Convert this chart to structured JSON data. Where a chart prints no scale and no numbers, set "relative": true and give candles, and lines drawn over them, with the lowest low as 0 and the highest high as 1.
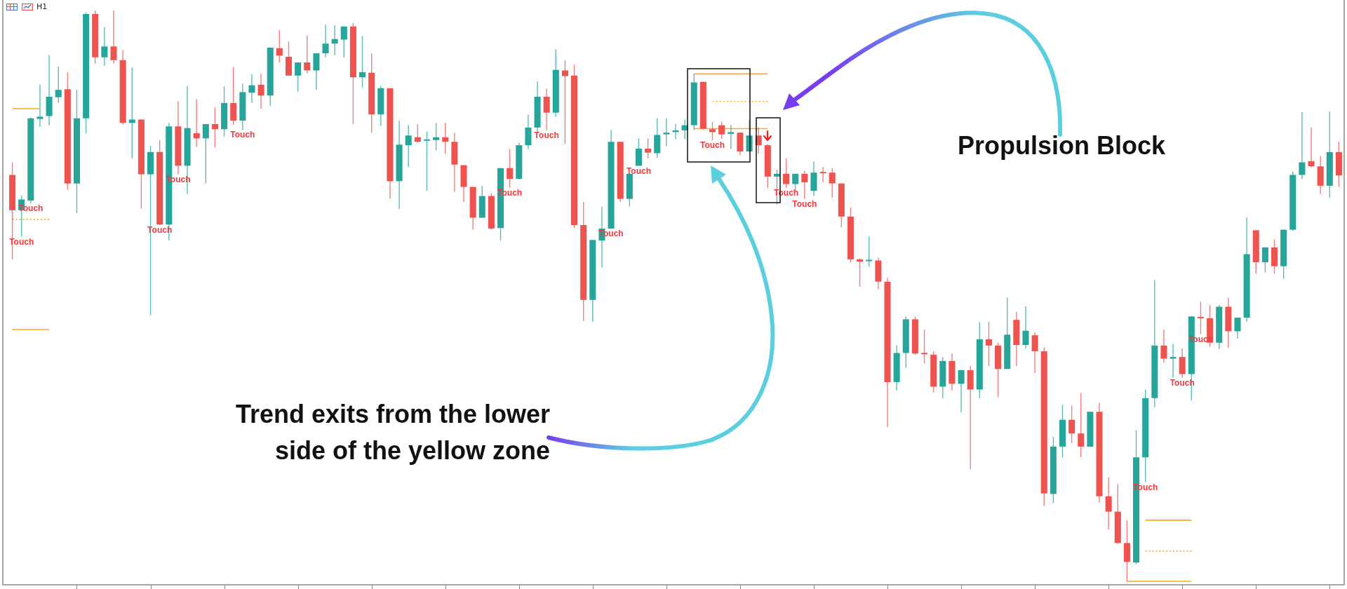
{
  "chart_data": {
    "type": "candlestick",
    "relative": true,
    "title": "H1",
    "tick_labels": false,
    "marker": "none",
    "categories": [
      null,
      null,
      null,
      null,
      null,
      null,
      null,
      null,
      null,
      null,
      null,
      null,
      null,
      null,
      null,
      null,
      null,
      null,
      null,
      null,
      null,
      null,
      null,
      null,
      null,
      null,
      null,
      null,
      null,
      null,
      null,
      null,
      null,
      null,
      null,
      null,
      null,
      null,
      null,
      null,
      null,
      null,
      null,
      null,
      null,
      null,
      null,
      null,
      null,
      null,
      null,
      null,
      null,
      null,
      null,
      null,
      null,
      null,
      null,
      null,
      null,
      null,
      null,
      null,
      null,
      null,
      null,
      null,
      null,
      null,
      null,
      null,
      null,
      null,
      null,
      null,
      null,
      null,
      null,
      null,
      null,
      null,
      null,
      null,
      null,
      null,
      null,
      null,
      null,
      null,
      null,
      null,
      null,
      null,
      null,
      null,
      null,
      null,
      null,
      null,
      null,
      null,
      null,
      null,
      null,
      null,
      null,
      null,
      null,
      null,
      null,
      null,
      null,
      null,
      null,
      null,
      null,
      null,
      null,
      null,
      null,
      null,
      null,
      null,
      null,
      null,
      null,
      null,
      null,
      null,
      null,
      null,
      null,
      null,
      null,
      null,
      null,
      null,
      null,
      null,
      null,
      null,
      null,
      null,
      null
    ],
    "ohlc": [
      [
        0.712,
        0.734,
        0.564,
        0.65
      ],
      [
        0.65,
        0.676,
        0.604,
        0.669
      ],
      [
        0.667,
        0.813,
        0.662,
        0.811
      ],
      [
        0.81,
        0.87,
        0.796,
        0.814
      ],
      [
        0.815,
        0.922,
        0.799,
        0.849
      ],
      [
        0.848,
        0.902,
        0.838,
        0.861
      ],
      [
        0.862,
        0.892,
        0.686,
        0.697
      ],
      [
        0.697,
        0.861,
        0.645,
        0.811
      ],
      [
        0.811,
        0.997,
        0.785,
        0.994
      ],
      [
        0.994,
        1,
        0.907,
        0.918
      ],
      [
        0.918,
        0.971,
        0.903,
        0.937
      ],
      [
        0.937,
        1,
        0.907,
        0.913
      ],
      [
        0.913,
        0.931,
        0.8,
        0.803
      ],
      [
        0.803,
        0.9,
        0.741,
        0.809
      ],
      [
        0.809,
        0.809,
        0.653,
        0.713
      ],
      [
        0.713,
        0.763,
        0.466,
        0.752
      ],
      [
        0.752,
        0.773,
        0.624,
        0.625
      ],
      [
        0.625,
        0.803,
        0.597,
        0.797
      ],
      [
        0.797,
        0.841,
        0.713,
        0.728
      ],
      [
        0.728,
        0.868,
        0.678,
        0.794
      ],
      [
        0.785,
        0.845,
        0.761,
        0.776
      ],
      [
        0.776,
        0.801,
        0.697,
        0.801
      ],
      [
        0.801,
        0.83,
        0.76,
        0.792
      ],
      [
        0.792,
        0.867,
        0.779,
        0.838
      ],
      [
        0.838,
        0.901,
        0.8,
        0.807
      ],
      [
        0.807,
        0.872,
        0.791,
        0.857
      ],
      [
        0.856,
        0.888,
        0.838,
        0.869
      ],
      [
        0.87,
        0.889,
        0.828,
        0.851
      ],
      [
        0.851,
        0.935,
        0.833,
        0.935
      ],
      [
        0.934,
        0.966,
        0.909,
        0.921
      ],
      [
        0.919,
        0.946,
        0.886,
        0.886
      ],
      [
        0.886,
        0.909,
        0.858,
        0.909
      ],
      [
        0.909,
        0.956,
        0.89,
        0.895
      ],
      [
        0.895,
        0.925,
        0.861,
        0.925
      ],
      [
        0.925,
        0.975,
        0.918,
        0.942
      ],
      [
        0.942,
        0.974,
        0.922,
        0.95
      ],
      [
        0.949,
        0.972,
        0.918,
        0.972
      ],
      [
        0.972,
        0.978,
        0.801,
        0.883
      ],
      [
        0.883,
        0.955,
        0.865,
        0.892
      ],
      [
        0.891,
        0.925,
        0.786,
        0.818
      ],
      [
        0.818,
        0.868,
        0.798,
        0.864
      ],
      [
        0.864,
        0.864,
        0.67,
        0.701
      ],
      [
        0.701,
        0.807,
        0.652,
        0.765
      ],
      [
        0.764,
        0.799,
        0.726,
        0.781
      ],
      [
        0.778,
        0.801,
        0.768,
        0.77
      ],
      [
        0.771,
        0.788,
        0.684,
        0.773
      ],
      [
        0.773,
        0.803,
        0.755,
        0.778
      ],
      [
        0.778,
        0.803,
        0.749,
        0.77
      ],
      [
        0.77,
        0.786,
        0.682,
        0.73
      ],
      [
        0.729,
        0.729,
        0.665,
        0.691
      ],
      [
        0.691,
        0.691,
        0.616,
        0.637
      ],
      [
        0.637,
        0.693,
        0.637,
        0.675
      ],
      [
        0.675,
        0.68,
        0.616,
        0.618
      ],
      [
        0.619,
        0.724,
        0.597,
        0.724
      ],
      [
        0.724,
        0.757,
        0.689,
        0.705
      ],
      [
        0.705,
        0.768,
        0.704,
        0.764
      ],
      [
        0.764,
        0.818,
        0.757,
        0.795
      ],
      [
        0.795,
        0.876,
        0.785,
        0.849
      ],
      [
        0.849,
        0.863,
        0.79,
        0.821
      ],
      [
        0.821,
        0.932,
        0.814,
        0.896
      ],
      [
        0.895,
        0.913,
        0.766,
        0.885
      ],
      [
        0.886,
        0.905,
        0.619,
        0.624
      ],
      [
        0.624,
        0.665,
        0.456,
        0.493
      ],
      [
        0.493,
        0.598,
        0.455,
        0.598
      ],
      [
        0.597,
        0.656,
        0.55,
        0.618
      ],
      [
        0.618,
        0.791,
        0.618,
        0.77
      ],
      [
        0.77,
        0.77,
        0.665,
        0.67
      ],
      [
        0.67,
        0.714,
        0.657,
        0.714
      ],
      [
        0.728,
        0.776,
        0.728,
        0.758
      ],
      [
        0.758,
        0.776,
        0.741,
        0.751
      ],
      [
        0.75,
        0.811,
        0.742,
        0.782
      ],
      [
        0.783,
        0.811,
        0.762,
        0.786
      ],
      [
        0.787,
        0.801,
        0.775,
        0.79
      ],
      [
        0.79,
        0.809,
        0.775,
        0.799
      ],
      [
        0.799,
        0.889,
        0.791,
        0.874
      ],
      [
        0.875,
        0.875,
        0.791,
        0.793
      ],
      [
        0.792,
        0.805,
        0.773,
        0.787
      ],
      [
        0.799,
        0.805,
        0.775,
        0.783
      ],
      [
        0.784,
        0.799,
        0.757,
        0.787
      ],
      [
        0.786,
        0.786,
        0.747,
        0.753
      ],
      [
        0.753,
        0.808,
        0.753,
        0.781
      ],
      [
        0.781,
        0.795,
        0.749,
        0.764
      ],
      [
        0.764,
        0.766,
        0.689,
        0.709
      ],
      [
        0.709,
        0.721,
        0.66,
        0.714
      ],
      [
        0.714,
        0.741,
        0.689,
        0.696
      ],
      [
        0.696,
        0.714,
        0.684,
        0.714
      ],
      [
        0.714,
        0.719,
        0.67,
        0.699
      ],
      [
        0.684,
        0.736,
        0.675,
        0.716
      ],
      [
        0.716,
        0.726,
        0.699,
        0.715
      ],
      [
        0.716,
        0.724,
        0.672,
        0.697
      ],
      [
        0.697,
        0.697,
        0.62,
        0.639
      ],
      [
        0.639,
        0.655,
        0.558,
        0.564
      ],
      [
        0.564,
        0.566,
        0.516,
        0.56
      ],
      [
        0.56,
        0.604,
        0.551,
        0.562
      ],
      [
        0.562,
        0.567,
        0.512,
        0.525
      ],
      [
        0.525,
        0.532,
        0.27,
        0.349
      ],
      [
        0.349,
        0.413,
        0.334,
        0.4
      ],
      [
        0.4,
        0.464,
        0.374,
        0.459
      ],
      [
        0.459,
        0.464,
        0.397,
        0.399
      ],
      [
        0.399,
        0.441,
        0.382,
        0.397
      ],
      [
        0.397,
        0.403,
        0.331,
        0.341
      ],
      [
        0.341,
        0.393,
        0.321,
        0.386
      ],
      [
        0.386,
        0.399,
        0.334,
        0.346
      ],
      [
        0.346,
        0.37,
        0.296,
        0.37
      ],
      [
        0.37,
        0.377,
        0.196,
        0.336
      ],
      [
        0.336,
        0.454,
        0.321,
        0.424
      ],
      [
        0.424,
        0.455,
        0.377,
        0.413
      ],
      [
        0.413,
        0.418,
        0.323,
        0.372
      ],
      [
        0.372,
        0.497,
        0.372,
        0.432
      ],
      [
        0.458,
        0.472,
        0.377,
        0.414
      ],
      [
        0.414,
        0.482,
        0.408,
        0.439
      ],
      [
        0.431,
        0.436,
        0.365,
        0.403
      ],
      [
        0.403,
        0.41,
        0.132,
        0.154
      ],
      [
        0.153,
        0.253,
        0.137,
        0.236
      ],
      [
        0.236,
        0.309,
        0.217,
        0.283
      ],
      [
        0.283,
        0.308,
        0.242,
        0.259
      ],
      [
        0.259,
        0.33,
        0.217,
        0.236
      ],
      [
        0.236,
        0.297,
        0.236,
        0.297
      ],
      [
        0.297,
        0.313,
        0.138,
        0.149
      ],
      [
        0.149,
        0.182,
        0.091,
        0.122
      ],
      [
        0.122,
        0.17,
        0.066,
        0.067
      ],
      [
        0.067,
        0.107,
        0,
        0.034
      ],
      [
        0.033,
        0.265,
        0.03,
        0.217
      ],
      [
        0.217,
        0.336,
        0.174,
        0.321
      ],
      [
        0.321,
        0.528,
        0.305,
        0.413
      ],
      [
        0.413,
        0.441,
        0.383,
        0.39
      ],
      [
        0.39,
        0.416,
        0.357,
        0.393
      ],
      [
        0.393,
        0.408,
        0.357,
        0.363
      ],
      [
        0.363,
        0.464,
        0.317,
        0.464
      ],
      [
        0.462,
        0.49,
        0.433,
        0.461
      ],
      [
        0.461,
        0.484,
        0.411,
        0.418
      ],
      [
        0.418,
        0.484,
        0.407,
        0.481
      ],
      [
        0.481,
        0.497,
        0.409,
        0.438
      ],
      [
        0.438,
        0.462,
        0.425,
        0.462
      ],
      [
        0.462,
        0.638,
        0.455,
        0.573
      ],
      [
        0.615,
        0.615,
        0.539,
        0.559
      ],
      [
        0.559,
        0.585,
        0.541,
        0.585
      ],
      [
        0.585,
        0.599,
        0.539,
        0.552
      ],
      [
        0.552,
        0.616,
        0.53,
        0.616
      ],
      [
        0.616,
        0.718,
        0.614,
        0.712
      ],
      [
        0.712,
        0.822,
        0.705,
        0.734
      ],
      [
        0.736,
        0.795,
        0.725,
        0.727
      ],
      [
        0.727,
        0.745,
        0.678,
        0.693
      ],
      [
        0.693,
        0.823,
        0.672,
        0.752
      ],
      [
        0.752,
        0.77,
        0.691,
        0.711
      ]
    ],
    "colors": [
      "#ef5350",
      "#26a69a",
      "#26a69a",
      "#26a69a",
      "#26a69a",
      "#26a69a",
      "#ef5350",
      "#26a69a",
      "#26a69a",
      "#ef5350",
      "#26a69a",
      "#ef5350",
      "#ef5350",
      "#26a69a",
      "#ef5350",
      "#26a69a",
      "#ef5350",
      "#26a69a",
      "#ef5350",
      "#26a69a",
      "#ef5350",
      "#26a69a",
      "#ef5350",
      "#26a69a",
      "#ef5350",
      "#26a69a",
      "#26a69a",
      "#ef5350",
      "#26a69a",
      "#ef5350",
      "#ef5350",
      "#26a69a",
      "#ef5350",
      "#26a69a",
      "#26a69a",
      "#26a69a",
      "#26a69a",
      "#ef5350",
      "#26a69a",
      "#ef5350",
      "#26a69a",
      "#ef5350",
      "#26a69a",
      "#26a69a",
      "#ef5350",
      "#26a69a",
      "#26a69a",
      "#ef5350",
      "#ef5350",
      "#ef5350",
      "#ef5350",
      "#26a69a",
      "#ef5350",
      "#26a69a",
      "#ef5350",
      "#26a69a",
      "#26a69a",
      "#26a69a",
      "#ef5350",
      "#26a69a",
      "#ef5350",
      "#ef5350",
      "#ef5350",
      "#26a69a",
      "#26a69a",
      "#26a69a",
      "#ef5350",
      "#26a69a",
      "#26a69a",
      "#ef5350",
      "#26a69a",
      "#26a69a",
      "#26a69a",
      "#26a69a",
      "#26a69a",
      "#ef5350",
      "#ef5350",
      "#ef5350",
      "#26a69a",
      "#ef5350",
      "#26a69a",
      "#ef5350",
      "#ef5350",
      "#26a69a",
      "#ef5350",
      "#26a69a",
      "#ef5350",
      "#26a69a",
      "#ef5350",
      "#ef5350",
      "#ef5350",
      "#ef5350",
      "#ef5350",
      "#26a69a",
      "#ef5350",
      "#ef5350",
      "#26a69a",
      "#26a69a",
      "#ef5350",
      "#ef5350",
      "#ef5350",
      "#26a69a",
      "#ef5350",
      "#26a69a",
      "#ef5350",
      "#26a69a",
      "#ef5350",
      "#ef5350",
      "#26a69a",
      "#ef5350",
      "#26a69a",
      "#ef5350",
      "#ef5350",
      "#26a69a",
      "#26a69a",
      "#ef5350",
      "#ef5350",
      "#26a69a",
      "#ef5350",
      "#ef5350",
      "#ef5350",
      "#ef5350",
      "#26a69a",
      "#26a69a",
      "#26a69a",
      "#ef5350",
      "#26a69a",
      "#ef5350",
      "#26a69a",
      "#ef5350",
      "#ef5350",
      "#26a69a",
      "#ef5350",
      "#26a69a",
      "#26a69a",
      "#ef5350",
      "#26a69a",
      "#ef5350",
      "#26a69a",
      "#26a69a",
      "#26a69a",
      "#ef5350",
      "#ef5350",
      "#26a69a",
      "#ef5350"
    ],
    "value_labels": [
      null,
      "Touch",
      "Touch",
      null,
      null,
      null,
      null,
      null,
      null,
      null,
      null,
      null,
      null,
      null,
      null,
      null,
      "Touch",
      null,
      "Touch",
      null,
      null,
      null,
      null,
      null,
      null,
      "Touch",
      null,
      null,
      null,
      null,
      null,
      null,
      null,
      null,
      null,
      null,
      null,
      null,
      null,
      null,
      null,
      null,
      null,
      null,
      null,
      null,
      null,
      null,
      null,
      null,
      null,
      null,
      null,
      null,
      "Touch",
      null,
      null,
      null,
      "Touch",
      null,
      null,
      null,
      null,
      null,
      null,
      "Touch",
      null,
      null,
      "Touch",
      null,
      null,
      null,
      null,
      null,
      null,
      null,
      "Touch",
      null,
      null,
      null,
      null,
      null,
      null,
      null,
      "Touch",
      null,
      "Touch",
      null,
      null,
      null,
      null,
      null,
      null,
      null,
      null,
      null,
      null,
      null,
      null,
      null,
      null,
      null,
      null,
      null,
      null,
      null,
      null,
      null,
      null,
      null,
      null,
      null,
      null,
      null,
      null,
      null,
      null,
      null,
      null,
      null,
      null,
      null,
      null,
      "Touch",
      null,
      null,
      null,
      "Touch",
      null,
      "Touch",
      null,
      null,
      null,
      null,
      null,
      null,
      null,
      null,
      null,
      null,
      null,
      null,
      null,
      null,
      null
    ],
    "series": [
      {
        "type": "line",
        "color": "#ffa91f",
        "line_style": "solid",
        "values": [
          0.828,
          0.828,
          0.828,
          0.828,
          null,
          null,
          null,
          null,
          null,
          null,
          null,
          null,
          null,
          null,
          null,
          null,
          null,
          null,
          null,
          null,
          null,
          null,
          null,
          null,
          null,
          null,
          null,
          null,
          null,
          null,
          null,
          null,
          null,
          null,
          null,
          null,
          null,
          null,
          null,
          null,
          null,
          null,
          null,
          null,
          null,
          null,
          null,
          null,
          null,
          null,
          null,
          null,
          null,
          null,
          null,
          null,
          null,
          null,
          null,
          null,
          null,
          null,
          null,
          null,
          null,
          null,
          null,
          null,
          null,
          null,
          null,
          null,
          null,
          null,
          null,
          null,
          null,
          null,
          null,
          null,
          null,
          null,
          null,
          null,
          null,
          null,
          null,
          null,
          null,
          null,
          null,
          null,
          null,
          null,
          null,
          null,
          null,
          null,
          null,
          null,
          null,
          null,
          null,
          null,
          null,
          null,
          null,
          null,
          null,
          null,
          null,
          null,
          null,
          null,
          null,
          null,
          null,
          null,
          null,
          null,
          null,
          null,
          null,
          null,
          null,
          null,
          null,
          null,
          null,
          null,
          null,
          null,
          null,
          null,
          null,
          null,
          null,
          null,
          null,
          null,
          null,
          null,
          null,
          null,
          null
        ]
      },
      {
        "type": "line",
        "color": "#ffa91f",
        "line_style": "dotted",
        "values": [
          0.634,
          0.634,
          0.634,
          0.634,
          0.634,
          null,
          null,
          null,
          null,
          null,
          null,
          null,
          null,
          null,
          null,
          null,
          null,
          null,
          null,
          null,
          null,
          null,
          null,
          null,
          null,
          null,
          null,
          null,
          null,
          null,
          null,
          null,
          null,
          null,
          null,
          null,
          null,
          null,
          null,
          null,
          null,
          null,
          null,
          null,
          null,
          null,
          null,
          null,
          null,
          null,
          null,
          null,
          null,
          null,
          null,
          null,
          null,
          null,
          null,
          null,
          null,
          null,
          null,
          null,
          null,
          null,
          null,
          null,
          null,
          null,
          null,
          null,
          null,
          null,
          null,
          null,
          null,
          null,
          null,
          null,
          null,
          null,
          null,
          null,
          null,
          null,
          null,
          null,
          null,
          null,
          null,
          null,
          null,
          null,
          null,
          null,
          null,
          null,
          null,
          null,
          null,
          null,
          null,
          null,
          null,
          null,
          null,
          null,
          null,
          null,
          null,
          null,
          null,
          null,
          null,
          null,
          null,
          null,
          null,
          null,
          null,
          null,
          null,
          null,
          null,
          null,
          null,
          null,
          null,
          null,
          null,
          null,
          null,
          null,
          null,
          null,
          null,
          null,
          null,
          null,
          null,
          null,
          null,
          null,
          null
        ]
      },
      {
        "type": "line",
        "color": "#ffa91f",
        "line_style": "solid",
        "values": [
          0.441,
          0.441,
          0.441,
          0.441,
          0.441,
          null,
          null,
          null,
          null,
          null,
          null,
          null,
          null,
          null,
          null,
          null,
          null,
          null,
          null,
          null,
          null,
          null,
          null,
          null,
          null,
          null,
          null,
          null,
          null,
          null,
          null,
          null,
          null,
          null,
          null,
          null,
          null,
          null,
          null,
          null,
          null,
          null,
          null,
          null,
          null,
          null,
          null,
          null,
          null,
          null,
          null,
          null,
          null,
          null,
          null,
          null,
          null,
          null,
          null,
          null,
          null,
          null,
          null,
          null,
          null,
          null,
          null,
          null,
          null,
          null,
          null,
          null,
          null,
          null,
          null,
          null,
          null,
          null,
          null,
          null,
          null,
          null,
          null,
          null,
          null,
          null,
          null,
          null,
          null,
          null,
          null,
          null,
          null,
          null,
          null,
          null,
          null,
          null,
          null,
          null,
          null,
          null,
          null,
          null,
          null,
          null,
          null,
          null,
          null,
          null,
          null,
          null,
          null,
          null,
          null,
          null,
          null,
          null,
          null,
          null,
          null,
          null,
          null,
          null,
          null,
          null,
          null,
          null,
          null,
          null,
          null,
          null,
          null,
          null,
          null,
          null,
          null,
          null,
          null,
          null,
          null,
          null,
          null,
          null,
          null
        ]
      },
      {
        "type": "line",
        "color": "#ffa91f",
        "line_style": "solid",
        "values": [
          null,
          null,
          null,
          null,
          null,
          null,
          null,
          null,
          null,
          null,
          null,
          null,
          null,
          null,
          null,
          null,
          null,
          null,
          null,
          null,
          null,
          null,
          null,
          null,
          null,
          null,
          null,
          null,
          null,
          null,
          null,
          null,
          null,
          null,
          null,
          null,
          null,
          null,
          null,
          null,
          null,
          null,
          null,
          null,
          null,
          null,
          null,
          null,
          null,
          null,
          null,
          null,
          null,
          null,
          null,
          null,
          null,
          null,
          null,
          null,
          null,
          null,
          null,
          null,
          null,
          null,
          null,
          null,
          null,
          null,
          null,
          null,
          null,
          null,
          0.889,
          0.889,
          0.889,
          0.889,
          0.889,
          0.889,
          0.889,
          0.889,
          0.889,
          null,
          null,
          null,
          null,
          null,
          null,
          null,
          null,
          null,
          null,
          null,
          null,
          null,
          null,
          null,
          null,
          null,
          null,
          null,
          null,
          null,
          null,
          null,
          null,
          null,
          null,
          null,
          null,
          null,
          null,
          null,
          null,
          null,
          null,
          null,
          null,
          null,
          null,
          null,
          null,
          null,
          null,
          null,
          null,
          null,
          null,
          null,
          null,
          null,
          null,
          null,
          null,
          null,
          null,
          null,
          null,
          null,
          null,
          null,
          null,
          null,
          null
        ]
      },
      {
        "type": "line",
        "color": "#ffa91f",
        "line_style": "dotted",
        "values": [
          null,
          null,
          null,
          null,
          null,
          null,
          null,
          null,
          null,
          null,
          null,
          null,
          null,
          null,
          null,
          null,
          null,
          null,
          null,
          null,
          null,
          null,
          null,
          null,
          null,
          null,
          null,
          null,
          null,
          null,
          null,
          null,
          null,
          null,
          null,
          null,
          null,
          null,
          null,
          null,
          null,
          null,
          null,
          null,
          null,
          null,
          null,
          null,
          null,
          null,
          null,
          null,
          null,
          null,
          null,
          null,
          null,
          null,
          null,
          null,
          null,
          null,
          null,
          null,
          null,
          null,
          null,
          null,
          null,
          null,
          null,
          null,
          null,
          null,
          null,
          null,
          0.841,
          0.841,
          0.841,
          0.841,
          0.841,
          0.841,
          0.841,
          null,
          null,
          null,
          null,
          null,
          null,
          null,
          null,
          null,
          null,
          null,
          null,
          null,
          null,
          null,
          null,
          null,
          null,
          null,
          null,
          null,
          null,
          null,
          null,
          null,
          null,
          null,
          null,
          null,
          null,
          null,
          null,
          null,
          null,
          null,
          null,
          null,
          null,
          null,
          null,
          null,
          null,
          null,
          null,
          null,
          null,
          null,
          null,
          null,
          null,
          null,
          null,
          null,
          null,
          null,
          null,
          null,
          null,
          null,
          null,
          null,
          null
        ]
      },
      {
        "type": "line",
        "color": "#ffa91f",
        "line_style": "solid",
        "values": [
          null,
          null,
          null,
          null,
          null,
          null,
          null,
          null,
          null,
          null,
          null,
          null,
          null,
          null,
          null,
          null,
          null,
          null,
          null,
          null,
          null,
          null,
          null,
          null,
          null,
          null,
          null,
          null,
          null,
          null,
          null,
          null,
          null,
          null,
          null,
          null,
          null,
          null,
          null,
          null,
          null,
          null,
          null,
          null,
          null,
          null,
          null,
          null,
          null,
          null,
          null,
          null,
          null,
          null,
          null,
          null,
          null,
          null,
          null,
          null,
          null,
          null,
          null,
          null,
          null,
          null,
          null,
          null,
          null,
          null,
          null,
          null,
          null,
          null,
          0.793,
          0.793,
          0.793,
          0.793,
          0.793,
          0.793,
          0.793,
          0.793,
          0.793,
          null,
          null,
          null,
          null,
          null,
          null,
          null,
          null,
          null,
          null,
          null,
          null,
          null,
          null,
          null,
          null,
          null,
          null,
          null,
          null,
          null,
          null,
          null,
          null,
          null,
          null,
          null,
          null,
          null,
          null,
          null,
          null,
          null,
          null,
          null,
          null,
          null,
          null,
          null,
          null,
          null,
          null,
          null,
          null,
          null,
          null,
          null,
          null,
          null,
          null,
          null,
          null,
          null,
          null,
          null,
          null,
          null,
          null,
          null,
          null,
          null,
          null
        ]
      },
      {
        "type": "line",
        "color": "#ffa91f",
        "line_style": "solid",
        "values": [
          null,
          null,
          null,
          null,
          null,
          null,
          null,
          null,
          null,
          null,
          null,
          null,
          null,
          null,
          null,
          null,
          null,
          null,
          null,
          null,
          null,
          null,
          null,
          null,
          null,
          null,
          null,
          null,
          null,
          null,
          null,
          null,
          null,
          null,
          null,
          null,
          null,
          null,
          null,
          null,
          null,
          null,
          null,
          null,
          null,
          null,
          null,
          null,
          null,
          null,
          null,
          null,
          null,
          null,
          null,
          null,
          null,
          null,
          null,
          null,
          null,
          null,
          null,
          null,
          null,
          null,
          null,
          null,
          null,
          null,
          null,
          null,
          null,
          null,
          null,
          null,
          null,
          null,
          null,
          null,
          null,
          null,
          null,
          null,
          null,
          null,
          null,
          null,
          null,
          null,
          null,
          null,
          null,
          null,
          null,
          null,
          null,
          null,
          null,
          null,
          null,
          null,
          null,
          null,
          null,
          null,
          null,
          null,
          null,
          null,
          null,
          null,
          null,
          null,
          null,
          null,
          null,
          null,
          null,
          null,
          null,
          null,
          null,
          0.107,
          0.107,
          0.107,
          0.107,
          0.107,
          0.107,
          null,
          null,
          null,
          null,
          null,
          null,
          null,
          null,
          null,
          null,
          null,
          null,
          null,
          null,
          null,
          null
        ]
      },
      {
        "type": "line",
        "color": "#ffa91f",
        "line_style": "dotted",
        "values": [
          null,
          null,
          null,
          null,
          null,
          null,
          null,
          null,
          null,
          null,
          null,
          null,
          null,
          null,
          null,
          null,
          null,
          null,
          null,
          null,
          null,
          null,
          null,
          null,
          null,
          null,
          null,
          null,
          null,
          null,
          null,
          null,
          null,
          null,
          null,
          null,
          null,
          null,
          null,
          null,
          null,
          null,
          null,
          null,
          null,
          null,
          null,
          null,
          null,
          null,
          null,
          null,
          null,
          null,
          null,
          null,
          null,
          null,
          null,
          null,
          null,
          null,
          null,
          null,
          null,
          null,
          null,
          null,
          null,
          null,
          null,
          null,
          null,
          null,
          null,
          null,
          null,
          null,
          null,
          null,
          null,
          null,
          null,
          null,
          null,
          null,
          null,
          null,
          null,
          null,
          null,
          null,
          null,
          null,
          null,
          null,
          null,
          null,
          null,
          null,
          null,
          null,
          null,
          null,
          null,
          null,
          null,
          null,
          null,
          null,
          null,
          null,
          null,
          null,
          null,
          null,
          null,
          null,
          null,
          null,
          null,
          null,
          null,
          0.053,
          0.053,
          0.053,
          0.053,
          0.053,
          0.053,
          null,
          null,
          null,
          null,
          null,
          null,
          null,
          null,
          null,
          null,
          null,
          null,
          null,
          null,
          null,
          null
        ]
      },
      {
        "type": "line",
        "color": "#ffa91f",
        "line_style": "solid",
        "values": [
          null,
          null,
          null,
          null,
          null,
          null,
          null,
          null,
          null,
          null,
          null,
          null,
          null,
          null,
          null,
          null,
          null,
          null,
          null,
          null,
          null,
          null,
          null,
          null,
          null,
          null,
          null,
          null,
          null,
          null,
          null,
          null,
          null,
          null,
          null,
          null,
          null,
          null,
          null,
          null,
          null,
          null,
          null,
          null,
          null,
          null,
          null,
          null,
          null,
          null,
          null,
          null,
          null,
          null,
          null,
          null,
          null,
          null,
          null,
          null,
          null,
          null,
          null,
          null,
          null,
          null,
          null,
          null,
          null,
          null,
          null,
          null,
          null,
          null,
          null,
          null,
          null,
          null,
          null,
          null,
          null,
          null,
          null,
          null,
          null,
          null,
          null,
          null,
          null,
          null,
          null,
          null,
          null,
          null,
          null,
          null,
          null,
          null,
          null,
          null,
          null,
          null,
          null,
          null,
          null,
          null,
          null,
          null,
          null,
          null,
          null,
          null,
          null,
          null,
          null,
          null,
          null,
          null,
          null,
          null,
          null,
          0,
          0,
          0,
          0,
          0,
          0,
          0,
          0,
          null,
          null,
          null,
          null,
          null,
          null,
          null,
          null,
          null,
          null,
          null,
          null,
          null,
          null,
          null,
          null
        ]
      }
    ],
    "annotations": [
      "Propulsion Block",
      "Trend exits from the lower\nside of the yellow zone"
    ]
  }
}
